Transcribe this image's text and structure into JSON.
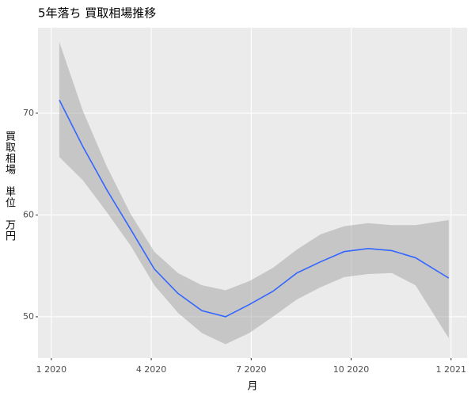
{
  "chart_data": {
    "type": "smooth",
    "title": "5年落ち 買取相場推移",
    "xlabel": "月",
    "ylabel": "買取相場　単位　万円",
    "x": [
      1.24,
      1.95,
      2.66,
      3.38,
      4.09,
      4.8,
      5.52,
      6.23,
      6.94,
      7.65,
      8.37,
      9.08,
      9.79,
      10.51,
      11.22,
      11.93,
      12.93
    ],
    "values": [
      71.3,
      66.7,
      62.5,
      58.6,
      54.7,
      52.3,
      50.6,
      50.0,
      51.2,
      52.5,
      54.3,
      55.4,
      56.4,
      56.7,
      56.5,
      55.8,
      53.8
    ],
    "upper": [
      77.0,
      70.2,
      64.8,
      60.1,
      56.4,
      54.3,
      53.1,
      52.6,
      53.5,
      54.8,
      56.6,
      58.1,
      58.9,
      59.2,
      59.0,
      59.0,
      59.5
    ],
    "lower": [
      65.7,
      63.4,
      60.3,
      57.0,
      53.1,
      50.4,
      48.4,
      47.3,
      48.4,
      50.0,
      51.7,
      52.9,
      53.9,
      54.2,
      54.3,
      53.1,
      47.9
    ],
    "color": "#3366ff",
    "band_color": "#999999",
    "xlim": [
      0.6,
      13.48
    ],
    "xticks": [
      {
        "value": 1,
        "label": "1 2020"
      },
      {
        "value": 4,
        "label": "4 2020"
      },
      {
        "value": 7,
        "label": "7 2020"
      },
      {
        "value": 10,
        "label": "10 2020"
      },
      {
        "value": 13,
        "label": "1 2021"
      }
    ],
    "ylim": [
      45.95,
      78.4
    ],
    "yticks": [
      50,
      60,
      70
    ],
    "grid": true
  }
}
